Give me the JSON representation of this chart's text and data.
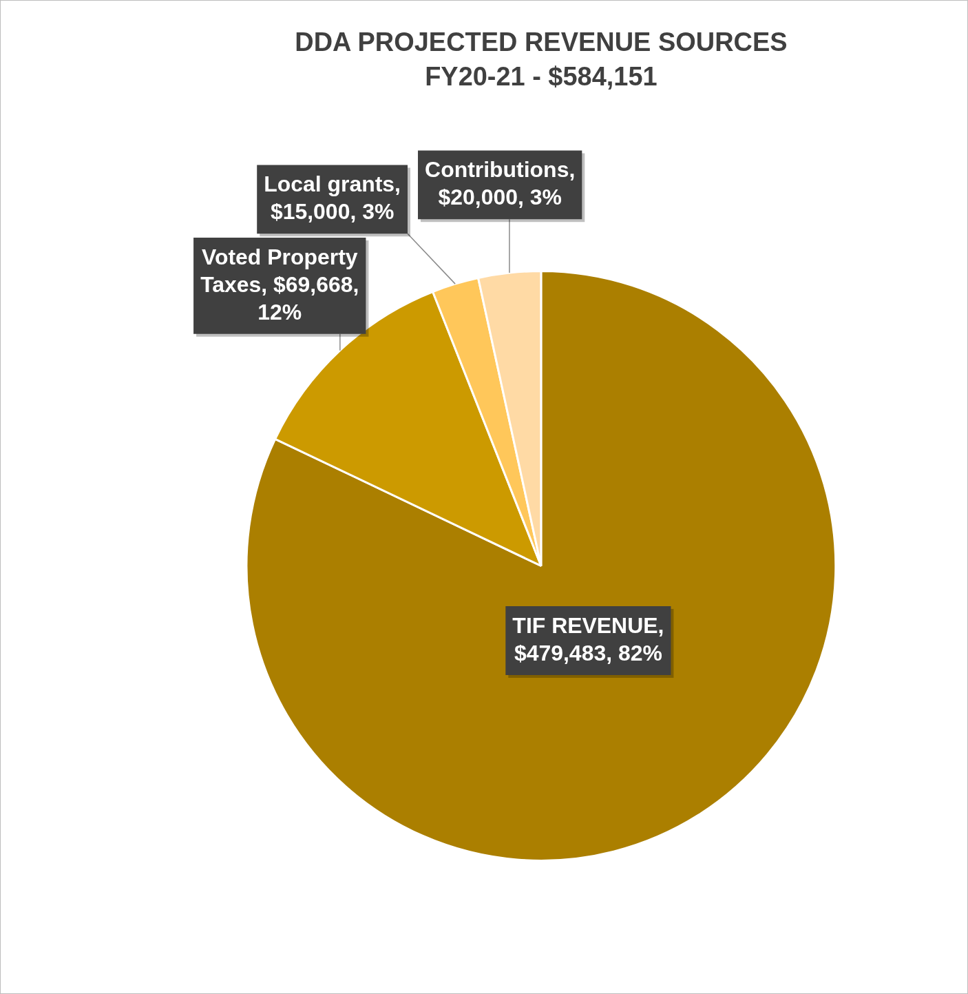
{
  "chart_data": {
    "type": "pie",
    "title": "DDA PROJECTED REVENUE SOURCES",
    "subtitle": "FY20-21 - $584,151",
    "categories": [
      "TIF REVENUE",
      "Voted Property Taxes",
      "Local grants",
      "Contributions"
    ],
    "values": [
      479483,
      69668,
      15000,
      20000
    ],
    "colors": [
      "#ab7f00",
      "#cc9a00",
      "#ffc75a",
      "#ffdaa5"
    ],
    "value_labels": [
      ", $479,483, 82%",
      ", $69,668, 12%",
      ", $15,000, 3%",
      ", $20,000, 3%"
    ],
    "legend": false
  }
}
